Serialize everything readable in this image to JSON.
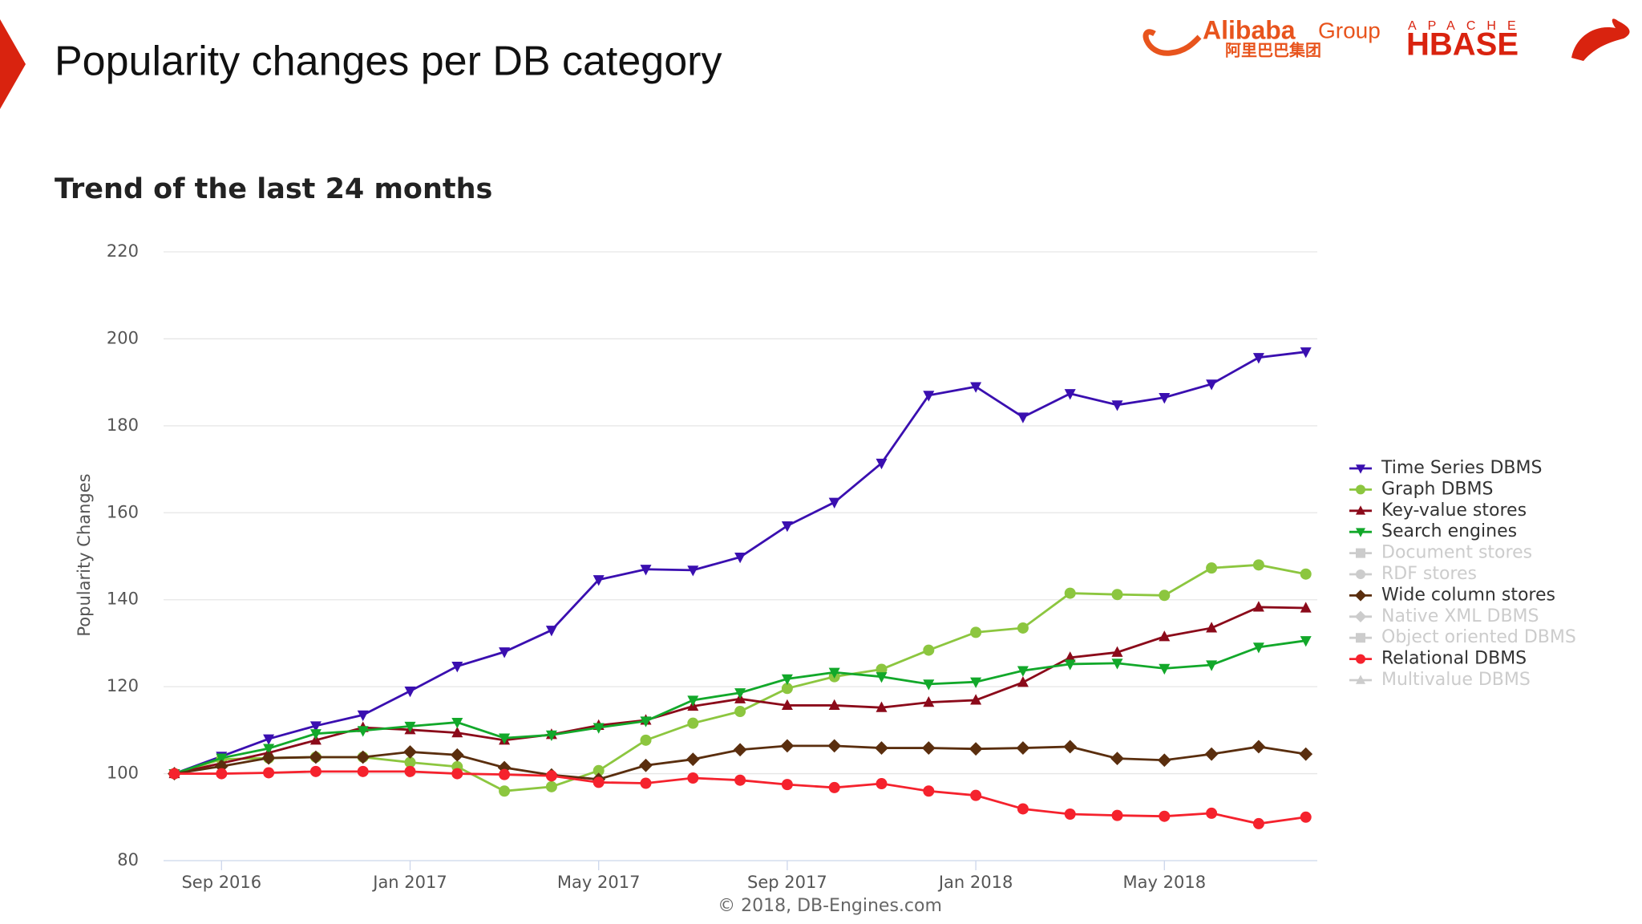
{
  "slide_title": "Popularity changes per DB category",
  "logos": {
    "alibaba": "Alibaba",
    "group": "Group",
    "alibaba_cn": "阿里巴巴集团",
    "apache": "APACHE",
    "hbase": "HBASE"
  },
  "chart_data": {
    "type": "line",
    "title": "Trend of the last 24 months",
    "y_label": "Popularity Changes",
    "credit": "© 2018, DB-Engines.com",
    "categories": [
      null,
      "Sep 2016",
      null,
      null,
      null,
      "Jan 2017",
      null,
      null,
      null,
      "May 2017",
      null,
      null,
      null,
      "Sep 2017",
      null,
      null,
      null,
      "Jan 2018",
      null,
      null,
      null,
      "May 2018",
      null,
      null,
      null
    ],
    "ylim": [
      80,
      220
    ],
    "yticks": [
      80,
      100,
      120,
      140,
      160,
      180,
      200,
      220
    ],
    "grid": true,
    "legend": "right",
    "series": [
      {
        "name": "Time Series DBMS",
        "color": "#3a0fb0",
        "marker": "triangle-down",
        "values": [
          100,
          104,
          108,
          111,
          113.5,
          119,
          124.7,
          128,
          133,
          144.6,
          147,
          146.8,
          149.8,
          157,
          162.4,
          171.4,
          187,
          189,
          182,
          187.4,
          184.8,
          186.5,
          189.6,
          195.7,
          197
        ]
      },
      {
        "name": "Graph DBMS",
        "color": "#8cc63f",
        "marker": "circle",
        "values": [
          100,
          103.3,
          103.6,
          103.8,
          103.8,
          102.6,
          101.6,
          96,
          97,
          100.7,
          107.7,
          111.6,
          114.3,
          119.6,
          122.3,
          124,
          128.4,
          132.5,
          133.5,
          141.5,
          141.2,
          141,
          147.3,
          148,
          145.9
        ]
      },
      {
        "name": "Key-value stores",
        "color": "#8b0a1a",
        "marker": "triangle-up",
        "values": [
          100,
          102.4,
          104.8,
          107.7,
          110.6,
          110.1,
          109.4,
          107.7,
          109,
          111.1,
          112.3,
          115.5,
          117.2,
          115.7,
          115.7,
          115.2,
          116.4,
          116.9,
          121,
          126.7,
          127.9,
          131.5,
          133.5,
          138.3,
          138.1
        ]
      },
      {
        "name": "Search engines",
        "color": "#12a82a",
        "marker": "triangle-down",
        "values": [
          100,
          103.6,
          105.8,
          109.2,
          109.9,
          110.9,
          111.8,
          108.2,
          108.9,
          110.6,
          112.1,
          116.9,
          118.6,
          121.8,
          123.3,
          122.3,
          120.6,
          121.1,
          123.7,
          125.2,
          125.4,
          124.2,
          125,
          129.1,
          130.6
        ]
      },
      {
        "name": "Document stores",
        "color": "#cccccc",
        "marker": "square",
        "hidden": true
      },
      {
        "name": "RDF stores",
        "color": "#cccccc",
        "marker": "circle",
        "hidden": true
      },
      {
        "name": "Wide column stores",
        "color": "#5a2e0e",
        "marker": "diamond",
        "values": [
          100,
          101.7,
          103.6,
          103.8,
          103.8,
          105,
          104.3,
          101.4,
          99.7,
          98.7,
          101.9,
          103.3,
          105.5,
          106.4,
          106.4,
          105.9,
          105.9,
          105.7,
          105.9,
          106.2,
          103.5,
          103.1,
          104.5,
          106.2,
          104.5
        ]
      },
      {
        "name": "Native XML DBMS",
        "color": "#cccccc",
        "marker": "diamond",
        "hidden": true
      },
      {
        "name": "Object oriented DBMS",
        "color": "#cccccc",
        "marker": "square",
        "hidden": true
      },
      {
        "name": "Relational DBMS",
        "color": "#f5222d",
        "marker": "circle",
        "values": [
          100,
          100,
          100.2,
          100.5,
          100.5,
          100.5,
          100,
          99.8,
          99.5,
          98,
          97.8,
          99,
          98.5,
          97.5,
          96.8,
          97.7,
          96,
          95,
          91.9,
          90.7,
          90.4,
          90.2,
          90.9,
          88.5,
          90
        ]
      },
      {
        "name": "Multivalue DBMS",
        "color": "#cccccc",
        "marker": "triangle-up",
        "hidden": true
      }
    ]
  }
}
